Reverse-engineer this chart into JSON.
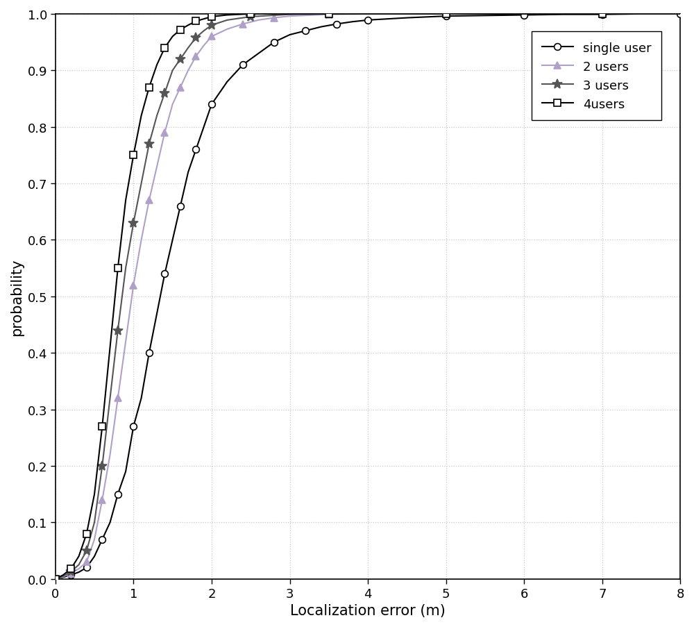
{
  "title": "",
  "xlabel": "Localization error (m)",
  "ylabel": "probability",
  "xlim": [
    0,
    8
  ],
  "ylim": [
    0,
    1
  ],
  "xticks": [
    0,
    1,
    2,
    3,
    4,
    5,
    6,
    7,
    8
  ],
  "yticks": [
    0,
    0.1,
    0.2,
    0.3,
    0.4,
    0.5,
    0.6,
    0.7,
    0.8,
    0.9,
    1.0
  ],
  "series": [
    {
      "label": "single user",
      "color": "#000000",
      "marker": "o",
      "markersize": 7,
      "linewidth": 1.5,
      "markerfacecolor": "white",
      "markeredgecolor": "#000000",
      "x": [
        0.0,
        0.1,
        0.2,
        0.3,
        0.4,
        0.5,
        0.6,
        0.7,
        0.8,
        0.9,
        1.0,
        1.1,
        1.2,
        1.3,
        1.4,
        1.5,
        1.6,
        1.7,
        1.8,
        1.9,
        2.0,
        2.2,
        2.4,
        2.6,
        2.8,
        3.0,
        3.2,
        3.4,
        3.6,
        3.8,
        4.0,
        4.5,
        5.0,
        5.5,
        6.0,
        6.5,
        7.0,
        7.5,
        8.0
      ],
      "y": [
        0.0,
        0.003,
        0.007,
        0.012,
        0.02,
        0.04,
        0.07,
        0.1,
        0.15,
        0.19,
        0.27,
        0.32,
        0.4,
        0.47,
        0.54,
        0.6,
        0.66,
        0.72,
        0.76,
        0.8,
        0.84,
        0.88,
        0.91,
        0.93,
        0.95,
        0.963,
        0.97,
        0.977,
        0.982,
        0.986,
        0.989,
        0.993,
        0.996,
        0.997,
        0.998,
        0.999,
        0.999,
        1.0,
        1.0
      ]
    },
    {
      "label": "2 users",
      "color": "#b0a0c8",
      "marker": "^",
      "markersize": 7,
      "linewidth": 1.5,
      "markerfacecolor": "#b0a0c8",
      "markeredgecolor": "#b0a0c8",
      "x": [
        0.0,
        0.1,
        0.2,
        0.3,
        0.4,
        0.5,
        0.6,
        0.7,
        0.8,
        0.9,
        1.0,
        1.1,
        1.2,
        1.3,
        1.4,
        1.5,
        1.6,
        1.7,
        1.8,
        1.9,
        2.0,
        2.2,
        2.4,
        2.6,
        2.8,
        3.0,
        3.5,
        4.0,
        5.0,
        6.0,
        7.0,
        8.0
      ],
      "y": [
        0.0,
        0.004,
        0.01,
        0.018,
        0.03,
        0.07,
        0.14,
        0.22,
        0.32,
        0.42,
        0.52,
        0.6,
        0.67,
        0.73,
        0.79,
        0.84,
        0.87,
        0.9,
        0.925,
        0.944,
        0.96,
        0.973,
        0.982,
        0.989,
        0.993,
        0.996,
        0.999,
        1.0,
        1.0,
        1.0,
        1.0,
        1.0
      ]
    },
    {
      "label": "3 users",
      "color": "#555555",
      "marker": "*",
      "markersize": 10,
      "linewidth": 1.5,
      "markerfacecolor": "#555555",
      "markeredgecolor": "#555555",
      "x": [
        0.0,
        0.1,
        0.2,
        0.3,
        0.4,
        0.5,
        0.6,
        0.7,
        0.8,
        0.9,
        1.0,
        1.1,
        1.2,
        1.3,
        1.4,
        1.5,
        1.6,
        1.7,
        1.8,
        1.9,
        2.0,
        2.2,
        2.5,
        3.0,
        3.5,
        4.0,
        5.0,
        6.0,
        7.0,
        8.0
      ],
      "y": [
        0.0,
        0.005,
        0.013,
        0.025,
        0.05,
        0.1,
        0.2,
        0.32,
        0.44,
        0.55,
        0.63,
        0.7,
        0.77,
        0.82,
        0.86,
        0.9,
        0.92,
        0.94,
        0.958,
        0.97,
        0.98,
        0.989,
        0.995,
        0.999,
        1.0,
        1.0,
        1.0,
        1.0,
        1.0,
        1.0
      ]
    },
    {
      "label": "4users",
      "color": "#000000",
      "marker": "s",
      "markersize": 7,
      "linewidth": 1.5,
      "markerfacecolor": "white",
      "markeredgecolor": "#000000",
      "x": [
        0.0,
        0.1,
        0.2,
        0.3,
        0.4,
        0.5,
        0.6,
        0.7,
        0.8,
        0.9,
        1.0,
        1.1,
        1.2,
        1.3,
        1.4,
        1.5,
        1.6,
        1.7,
        1.8,
        1.9,
        2.0,
        2.2,
        2.5,
        3.0,
        3.5,
        4.0,
        5.0,
        6.0,
        7.0,
        8.0
      ],
      "y": [
        0.0,
        0.007,
        0.018,
        0.04,
        0.08,
        0.15,
        0.27,
        0.41,
        0.55,
        0.67,
        0.75,
        0.82,
        0.87,
        0.91,
        0.94,
        0.96,
        0.972,
        0.98,
        0.987,
        0.991,
        0.995,
        0.998,
        1.0,
        1.0,
        1.0,
        1.0,
        1.0,
        1.0,
        1.0,
        1.0
      ]
    }
  ],
  "legend_loc": "upper right",
  "grid_color": "#c8c8c8",
  "background_color": "#ffffff"
}
